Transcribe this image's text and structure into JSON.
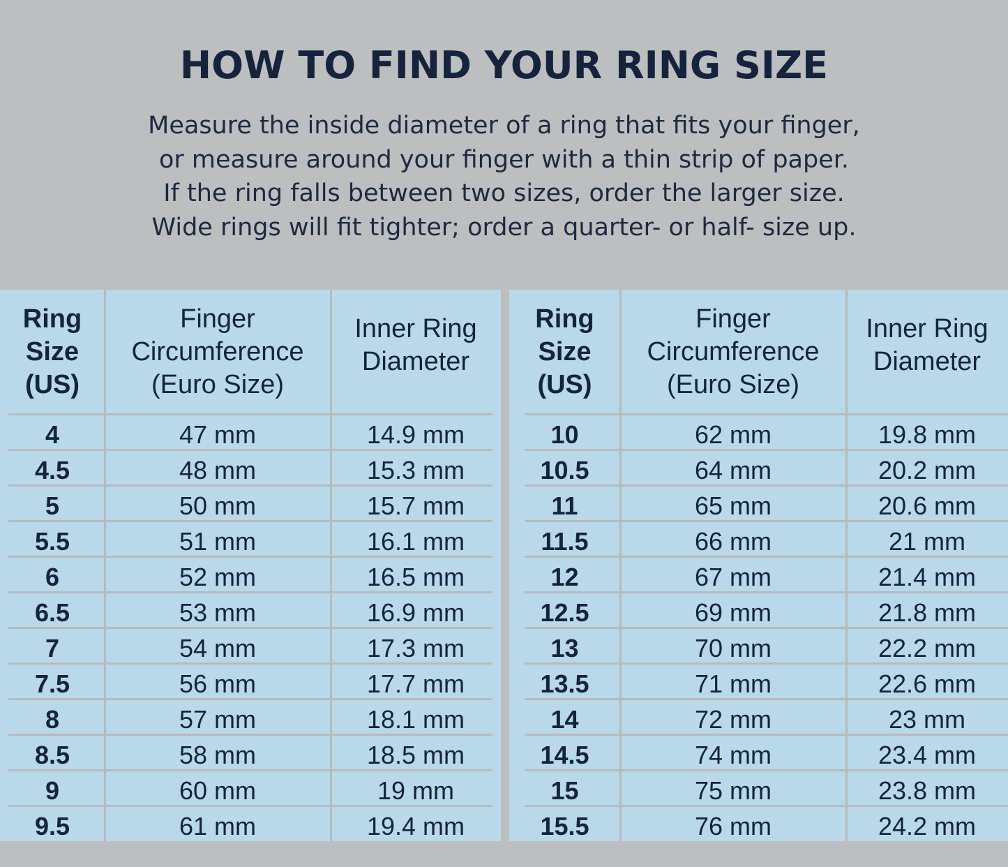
{
  "title": "HOW TO FIND YOUR RING SIZE",
  "intro": [
    "Measure the inside diameter of a ring that fits your finger,",
    "or measure around your finger with a thin strip of paper.",
    "If the ring falls between two sizes, order the larger size.",
    "Wide rings will fit tighter; order a quarter- or half- size up."
  ],
  "colors": {
    "background": "#bdbec0",
    "table": "#b9d9ea",
    "text": "#15233d"
  },
  "table": {
    "headers": [
      "Ring\nSize\n(US)",
      "Finger\nCircumference\n(Euro Size)",
      "Inner Ring\nDiameter"
    ],
    "left_rows": [
      [
        "4",
        "47 mm",
        "14.9 mm"
      ],
      [
        "4.5",
        "48 mm",
        "15.3 mm"
      ],
      [
        "5",
        "50 mm",
        "15.7 mm"
      ],
      [
        "5.5",
        "51 mm",
        "16.1 mm"
      ],
      [
        "6",
        "52 mm",
        "16.5 mm"
      ],
      [
        "6.5",
        "53 mm",
        "16.9 mm"
      ],
      [
        "7",
        "54 mm",
        "17.3 mm"
      ],
      [
        "7.5",
        "56 mm",
        "17.7 mm"
      ],
      [
        "8",
        "57 mm",
        "18.1 mm"
      ],
      [
        "8.5",
        "58 mm",
        "18.5 mm"
      ],
      [
        "9",
        "60 mm",
        "19 mm"
      ],
      [
        "9.5",
        "61 mm",
        "19.4 mm"
      ]
    ],
    "right_rows": [
      [
        "10",
        "62 mm",
        "19.8 mm"
      ],
      [
        "10.5",
        "64 mm",
        "20.2 mm"
      ],
      [
        "11",
        "65 mm",
        "20.6 mm"
      ],
      [
        "11.5",
        "66 mm",
        "21 mm"
      ],
      [
        "12",
        "67 mm",
        "21.4 mm"
      ],
      [
        "12.5",
        "69 mm",
        "21.8 mm"
      ],
      [
        "13",
        "70 mm",
        "22.2 mm"
      ],
      [
        "13.5",
        "71 mm",
        "22.6 mm"
      ],
      [
        "14",
        "72 mm",
        "23 mm"
      ],
      [
        "14.5",
        "74 mm",
        "23.4 mm"
      ],
      [
        "15",
        "75 mm",
        "23.8 mm"
      ],
      [
        "15.5",
        "76 mm",
        "24.2 mm"
      ]
    ]
  }
}
